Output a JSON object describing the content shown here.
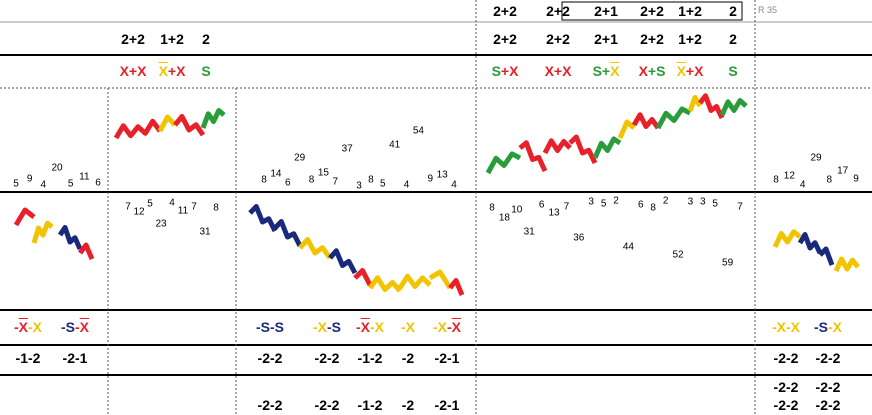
{
  "top_row": {
    "col4": [
      "2+2",
      "2+2",
      "2+1",
      "2+2",
      "1+2",
      "2"
    ],
    "marker": "R 35"
  },
  "header_row": {
    "col2": [
      "2+2",
      "1+2",
      "2"
    ],
    "col4": [
      "2+2",
      "2+2",
      "2+1",
      "2+2",
      "1+2",
      "2"
    ]
  },
  "pattern_row": {
    "col2": [
      [
        {
          "text": "X+X",
          "color": "#e8202a"
        }
      ],
      [
        {
          "text": "X",
          "color": "#f2c400",
          "overline": true
        },
        {
          "text": "+X",
          "color": "#e8202a"
        }
      ],
      [
        {
          "text": "S",
          "color": "#2a9d3a"
        }
      ]
    ],
    "col4": [
      [
        {
          "text": "S",
          "color": "#2a9d3a"
        },
        {
          "text": "+X",
          "color": "#e8202a"
        }
      ],
      [
        {
          "text": "X+X",
          "color": "#e8202a"
        }
      ],
      [
        {
          "text": "S+",
          "color": "#2a9d3a"
        },
        {
          "text": "X",
          "color": "#f2c400",
          "overline": true
        }
      ],
      [
        {
          "text": "X",
          "color": "#e8202a"
        },
        {
          "text": "+S",
          "color": "#2a9d3a"
        }
      ],
      [
        {
          "text": "X",
          "color": "#f2c400",
          "overline": true
        },
        {
          "text": "+X",
          "color": "#e8202a"
        }
      ],
      [
        {
          "text": "S",
          "color": "#2a9d3a"
        }
      ]
    ]
  },
  "upper_counts": {
    "col1": [
      5,
      9,
      4,
      20,
      5,
      11,
      6
    ],
    "col3": [
      8,
      14,
      6,
      29,
      8,
      15,
      7,
      37,
      3,
      8,
      5,
      41,
      4,
      54,
      9,
      13,
      4
    ],
    "col5": [
      8,
      12,
      4,
      29,
      8,
      17,
      9
    ]
  },
  "lower_counts": {
    "col2": [
      7,
      12,
      5,
      23,
      4,
      11,
      7,
      31,
      8
    ],
    "col4": [
      8,
      18,
      10,
      31,
      6,
      13,
      7,
      36,
      3,
      5,
      2,
      44,
      6,
      8,
      2,
      52,
      3,
      3,
      5,
      59,
      7
    ]
  },
  "pattern_bottom": {
    "col1": [
      [
        {
          "text": "-",
          "color": "#e8202a"
        },
        {
          "text": "X",
          "color": "#e8202a",
          "overline": true
        },
        {
          "text": "-X",
          "color": "#f2c400"
        }
      ],
      [
        {
          "text": "-S",
          "color": "#1a2a7a"
        },
        {
          "text": "-",
          "color": "#e8202a"
        },
        {
          "text": "X",
          "color": "#e8202a",
          "overline": true
        }
      ]
    ],
    "col3": [
      [
        {
          "text": "-S-S",
          "color": "#1a2a7a"
        }
      ],
      [
        {
          "text": "-X",
          "color": "#f2c400"
        },
        {
          "text": "-S",
          "color": "#1a2a7a"
        }
      ],
      [
        {
          "text": "-",
          "color": "#e8202a"
        },
        {
          "text": "X",
          "color": "#e8202a",
          "overline": true
        },
        {
          "text": "-X",
          "color": "#f2c400"
        }
      ],
      [
        {
          "text": "-X",
          "color": "#f2c400"
        }
      ],
      [
        {
          "text": "-X",
          "color": "#f2c400"
        },
        {
          "text": "-",
          "color": "#e8202a"
        },
        {
          "text": "X",
          "color": "#e8202a",
          "overline": true
        }
      ]
    ],
    "col5": [
      [
        {
          "text": "-X-X",
          "color": "#f2c400"
        }
      ],
      [
        {
          "text": "-S",
          "color": "#1a2a7a"
        },
        {
          "text": "-X",
          "color": "#f2c400"
        }
      ]
    ]
  },
  "scores_1": {
    "col1": [
      "-1-2",
      "-2-1"
    ],
    "col3": [
      "-2-2",
      "-2-2",
      "-1-2",
      "-2",
      "-2-1"
    ],
    "col5": [
      "-2-2",
      "-2-2"
    ]
  },
  "scores_2": {
    "col3": [
      "-2-2",
      "-2-2",
      "-1-2",
      "-2",
      "-2-1"
    ],
    "col5": [
      "-2-2",
      "-2-2"
    ]
  },
  "scores_3": {
    "col5": [
      "-2-2",
      "-2-2"
    ]
  }
}
